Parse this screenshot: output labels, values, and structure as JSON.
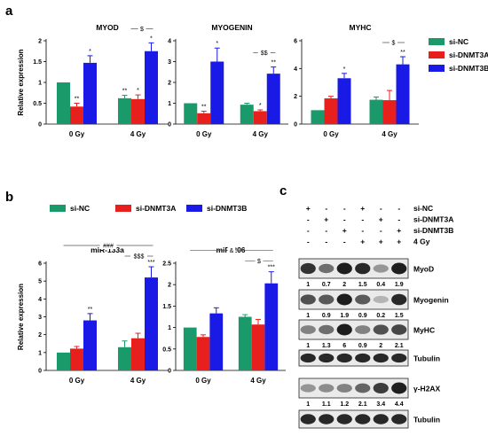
{
  "panels": {
    "a": "a",
    "b": "b",
    "c": "c"
  },
  "colors": {
    "si-NC": "#1a9a6a",
    "si-DNMT3A": "#e8201d",
    "si-DNMT3B": "#1a1ae6"
  },
  "legend_a": [
    "si-NC",
    "si-DNMT3A",
    "si-DNMT3B"
  ],
  "legend_b": [
    "si-NC",
    "si-DNMT3A",
    "si-DNMT3B"
  ],
  "chart_data": [
    {
      "type": "bar",
      "title": "MYOD",
      "ylabel": "Relative expression",
      "categories": [
        "0 Gy",
        "4 Gy"
      ],
      "ylim": [
        0,
        2
      ],
      "yticks": [
        "0",
        "0.5",
        "1",
        "1.5",
        "2"
      ],
      "series": [
        {
          "name": "si-NC",
          "values": [
            1.0,
            0.62
          ],
          "errors": [
            0,
            0.07
          ],
          "sig": [
            "",
            "**"
          ]
        },
        {
          "name": "si-DNMT3A",
          "values": [
            0.42,
            0.6
          ],
          "errors": [
            0.08,
            0.1
          ],
          "sig": [
            "**",
            "*"
          ]
        },
        {
          "name": "si-DNMT3B",
          "values": [
            1.47,
            1.75
          ],
          "errors": [
            0.17,
            0.2
          ],
          "sig": [
            "*",
            "*"
          ]
        }
      ],
      "bracket": "$"
    },
    {
      "type": "bar",
      "title": "MYOGENIN",
      "ylabel": "",
      "categories": [
        "0 Gy",
        "4 Gy"
      ],
      "ylim": [
        0,
        4
      ],
      "yticks": [
        "0",
        "1",
        "2",
        "3",
        "4"
      ],
      "series": [
        {
          "name": "si-NC",
          "values": [
            1.0,
            0.93
          ],
          "errors": [
            0,
            0.07
          ],
          "sig": [
            "",
            ""
          ]
        },
        {
          "name": "si-DNMT3A",
          "values": [
            0.52,
            0.62
          ],
          "errors": [
            0.1,
            0.06
          ],
          "sig": [
            "**",
            "*"
          ]
        },
        {
          "name": "si-DNMT3B",
          "values": [
            3.0,
            2.42
          ],
          "errors": [
            0.65,
            0.32
          ],
          "sig": [
            "*",
            "**"
          ]
        }
      ],
      "bracket": "$$"
    },
    {
      "type": "bar",
      "title": "MYHC",
      "ylabel": "",
      "categories": [
        "0 Gy",
        "4 Gy"
      ],
      "ylim": [
        0,
        6
      ],
      "yticks": [
        "0",
        "2",
        "4",
        "6"
      ],
      "series": [
        {
          "name": "si-NC",
          "values": [
            1.0,
            1.75
          ],
          "errors": [
            0,
            0.2
          ],
          "sig": [
            "",
            ""
          ]
        },
        {
          "name": "si-DNMT3A",
          "values": [
            1.85,
            1.72
          ],
          "errors": [
            0.15,
            0.7
          ],
          "sig": [
            "",
            ""
          ]
        },
        {
          "name": "si-DNMT3B",
          "values": [
            3.3,
            4.3
          ],
          "errors": [
            0.35,
            0.55
          ],
          "sig": [
            "*",
            "**"
          ]
        }
      ],
      "bracket": "$"
    },
    {
      "type": "bar",
      "title": "miR-133a",
      "ylabel": "Relative expression",
      "categories": [
        "0 Gy",
        "4 Gy"
      ],
      "ylim": [
        0,
        6
      ],
      "yticks": [
        "0",
        "1",
        "2",
        "3",
        "4",
        "5",
        "6"
      ],
      "series": [
        {
          "name": "si-NC",
          "values": [
            1.0,
            1.3
          ],
          "errors": [
            0,
            0.35
          ],
          "sig": [
            "",
            ""
          ]
        },
        {
          "name": "si-DNMT3A",
          "values": [
            1.22,
            1.8
          ],
          "errors": [
            0.12,
            0.28
          ],
          "sig": [
            "",
            ""
          ]
        },
        {
          "name": "si-DNMT3B",
          "values": [
            2.8,
            5.2
          ],
          "errors": [
            0.38,
            0.6
          ],
          "sig": [
            "**",
            "***"
          ]
        }
      ],
      "brackets": [
        "###",
        "$$$"
      ]
    },
    {
      "type": "bar",
      "title": "miR-206",
      "ylabel": "",
      "categories": [
        "0 Gy",
        "4 Gy"
      ],
      "ylim": [
        0,
        2.5
      ],
      "yticks": [
        "0",
        "0.5",
        "1",
        "1.5",
        "2",
        "2.5"
      ],
      "series": [
        {
          "name": "si-NC",
          "values": [
            1.0,
            1.25
          ],
          "errors": [
            0,
            0.05
          ],
          "sig": [
            "",
            ""
          ]
        },
        {
          "name": "si-DNMT3A",
          "values": [
            0.78,
            1.07
          ],
          "errors": [
            0.05,
            0.12
          ],
          "sig": [
            "",
            ""
          ]
        },
        {
          "name": "si-DNMT3B",
          "values": [
            1.33,
            2.03
          ],
          "errors": [
            0.13,
            0.27
          ],
          "sig": [
            "",
            "***"
          ]
        }
      ],
      "brackets": [
        "&",
        "$"
      ]
    }
  ],
  "blot": {
    "rows": [
      {
        "label": "si-NC",
        "signs": [
          "+",
          "-",
          "-",
          "+",
          "-",
          "-"
        ]
      },
      {
        "label": "si-DNMT3A",
        "signs": [
          "-",
          "+",
          "-",
          "-",
          "+",
          "-"
        ]
      },
      {
        "label": "si-DNMT3B",
        "signs": [
          "-",
          "-",
          "+",
          "-",
          "-",
          "+"
        ]
      },
      {
        "label": "4 Gy",
        "signs": [
          "-",
          "-",
          "-",
          "+",
          "+",
          "+"
        ]
      }
    ],
    "bands": [
      {
        "label": "MyoD",
        "quant": [
          "1",
          "0.7",
          "2",
          "1.5",
          "0.4",
          "1.9"
        ],
        "intensity": [
          0.85,
          0.55,
          0.95,
          0.9,
          0.35,
          0.95
        ]
      },
      {
        "label": "Myogenin",
        "quant": [
          "1",
          "0.9",
          "1.9",
          "0.9",
          "0.2",
          "1.5"
        ],
        "intensity": [
          0.7,
          0.65,
          0.95,
          0.65,
          0.2,
          0.9
        ]
      },
      {
        "label": "MyHC",
        "quant": [
          "1",
          "1.3",
          "6",
          "0.9",
          "2",
          "2.1"
        ],
        "intensity": [
          0.45,
          0.55,
          0.95,
          0.45,
          0.7,
          0.75
        ]
      },
      {
        "label": "Tubulin",
        "quant": [],
        "intensity": [
          0.9,
          0.9,
          0.9,
          0.9,
          0.9,
          0.9
        ]
      },
      {
        "label": "γ-H2AX",
        "quant": [
          "1",
          "1.1",
          "1.2",
          "2.1",
          "3.4",
          "4.4"
        ],
        "intensity": [
          0.35,
          0.4,
          0.45,
          0.6,
          0.8,
          0.95
        ]
      },
      {
        "label": "Tubulin",
        "quant": [],
        "intensity": [
          0.9,
          0.9,
          0.9,
          0.9,
          0.9,
          0.9
        ]
      }
    ]
  }
}
